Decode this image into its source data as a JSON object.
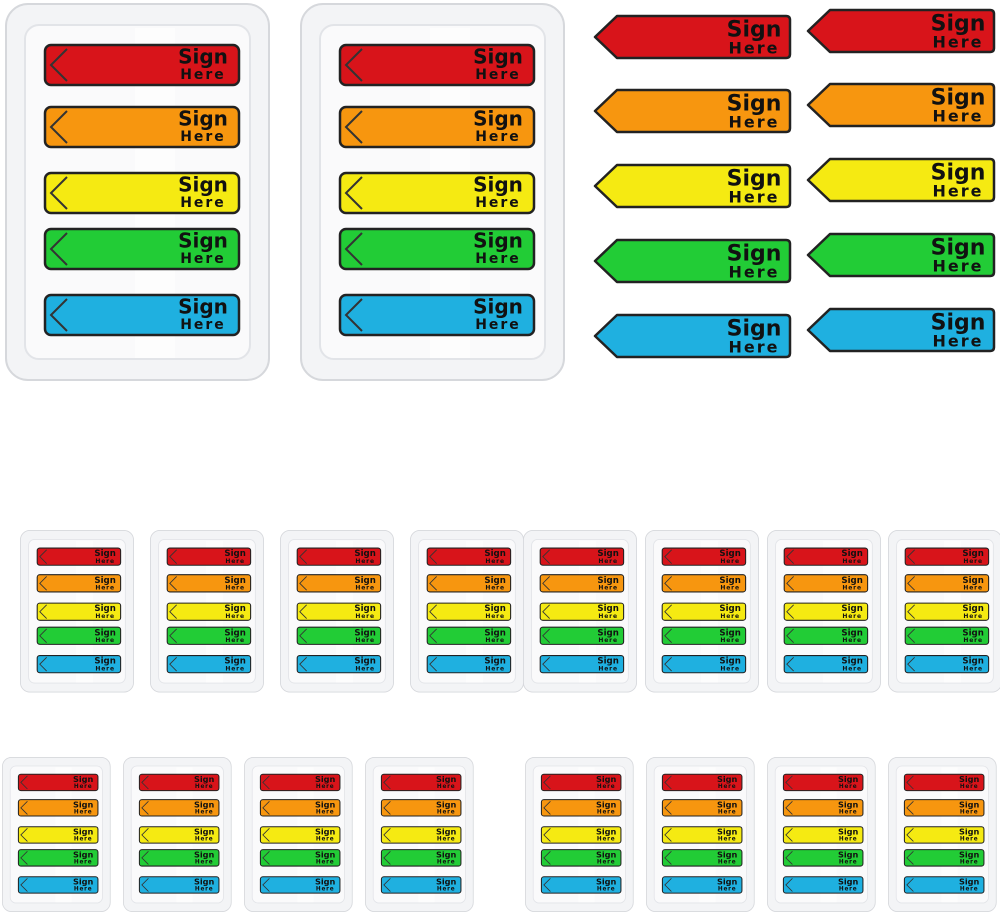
{
  "flag": {
    "line1": "Sign",
    "line2": "Here"
  }
}
